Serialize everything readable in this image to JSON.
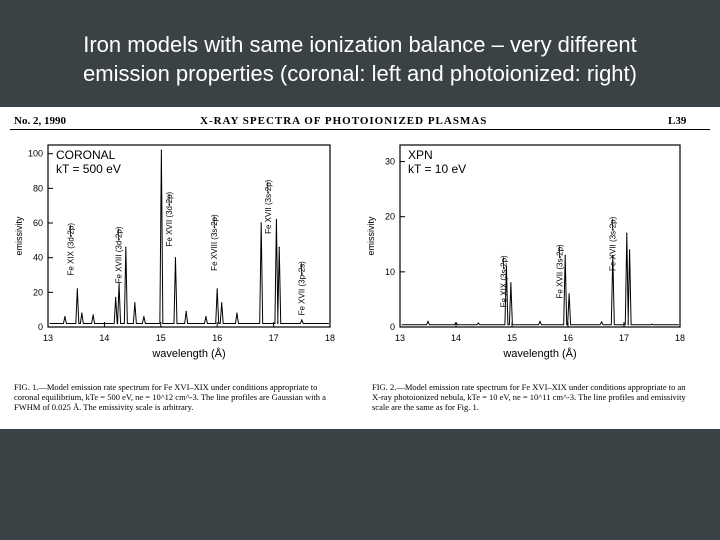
{
  "slide": {
    "title_line1": "Iron models with same ionization balance – very different",
    "title_line2": "emission properties (coronal: left and photoionized: right)"
  },
  "paper": {
    "header_left": "No. 2, 1990",
    "header_center": "X-RAY SPECTRA OF PHOTOIONIZED PLASMAS",
    "header_right": "L39",
    "caption_left": "FIG. 1.—Model emission rate spectrum for Fe XVI–XIX under conditions appropriate to coronal equilibrium, kTe = 500 eV, ne = 10^12 cm^-3. The line profiles are Gaussian with a FWHM of 0.025 Å. The emissivity scale is arbitrary.",
    "caption_right": "FIG. 2.—Model emission rate spectrum for Fe XVI–XIX under conditions appropriate to an X-ray photoionized nebula, kTe = 10 eV, ne = 10^11 cm^-3. The line profiles and emissivity scale are the same as for Fig. 1."
  },
  "chart_data": [
    {
      "type": "line",
      "panel_label": "CORONAL",
      "panel_sublabel": "kT = 500 eV",
      "xlabel": "wavelength (Å)",
      "ylabel": "emissivity",
      "xlim": [
        13,
        18
      ],
      "ylim": [
        0,
        105
      ],
      "xticks": [
        "13",
        "14",
        "15",
        "16",
        "17",
        "18"
      ],
      "yticks": [
        "0",
        "20",
        "40",
        "60",
        "80",
        "100"
      ],
      "baseline": 2,
      "peaks": [
        {
          "x": 13.3,
          "y": 6
        },
        {
          "x": 13.52,
          "y": 22
        },
        {
          "x": 13.6,
          "y": 8
        },
        {
          "x": 13.8,
          "y": 7
        },
        {
          "x": 14.2,
          "y": 17
        },
        {
          "x": 14.26,
          "y": 25
        },
        {
          "x": 14.38,
          "y": 46
        },
        {
          "x": 14.54,
          "y": 14
        },
        {
          "x": 14.7,
          "y": 6
        },
        {
          "x": 15.01,
          "y": 102
        },
        {
          "x": 15.26,
          "y": 40
        },
        {
          "x": 15.45,
          "y": 9
        },
        {
          "x": 15.8,
          "y": 6
        },
        {
          "x": 16.0,
          "y": 22
        },
        {
          "x": 16.08,
          "y": 14
        },
        {
          "x": 16.35,
          "y": 8
        },
        {
          "x": 16.78,
          "y": 60
        },
        {
          "x": 17.05,
          "y": 62
        },
        {
          "x": 17.1,
          "y": 46
        },
        {
          "x": 17.5,
          "y": 4
        }
      ],
      "annotations": [
        {
          "text": "Fe XIX (3d-2p)",
          "x": 13.45,
          "y": 60
        },
        {
          "text": "Fe XVIII (3d-2p)",
          "x": 14.3,
          "y": 58
        },
        {
          "text": "Fe XVII (3d-2p)",
          "x": 15.2,
          "y": 78
        },
        {
          "text": "Fe XVIII (3s-2p)",
          "x": 16.0,
          "y": 65
        },
        {
          "text": "Fe XVII (3s-2p)",
          "x": 16.95,
          "y": 85
        },
        {
          "text": "Fe XVII (3p-2s)",
          "x": 17.55,
          "y": 38
        }
      ]
    },
    {
      "type": "line",
      "panel_label": "XPN",
      "panel_sublabel": "kT = 10 eV",
      "xlabel": "wavelength (Å)",
      "ylabel": "emissivity",
      "xlim": [
        13,
        18
      ],
      "ylim": [
        0,
        33
      ],
      "xticks": [
        "13",
        "14",
        "15",
        "16",
        "17",
        "18"
      ],
      "yticks": [
        "0",
        "10",
        "20",
        "30"
      ],
      "baseline": 0.4,
      "peaks": [
        {
          "x": 13.5,
          "y": 1
        },
        {
          "x": 14.0,
          "y": 0.8
        },
        {
          "x": 14.4,
          "y": 0.7
        },
        {
          "x": 14.9,
          "y": 11
        },
        {
          "x": 14.98,
          "y": 8
        },
        {
          "x": 15.5,
          "y": 1
        },
        {
          "x": 15.95,
          "y": 13
        },
        {
          "x": 16.02,
          "y": 6
        },
        {
          "x": 16.6,
          "y": 0.9
        },
        {
          "x": 16.8,
          "y": 13
        },
        {
          "x": 17.05,
          "y": 17
        },
        {
          "x": 17.1,
          "y": 14
        },
        {
          "x": 17.5,
          "y": 0.5
        }
      ],
      "annotations": [
        {
          "text": "Fe XIX (3s-2p)",
          "x": 14.9,
          "y": 13
        },
        {
          "text": "Fe XVII (3s-2p)",
          "x": 15.9,
          "y": 15
        },
        {
          "text": "Fe XVII (3s-2p)",
          "x": 16.85,
          "y": 20
        }
      ]
    }
  ]
}
